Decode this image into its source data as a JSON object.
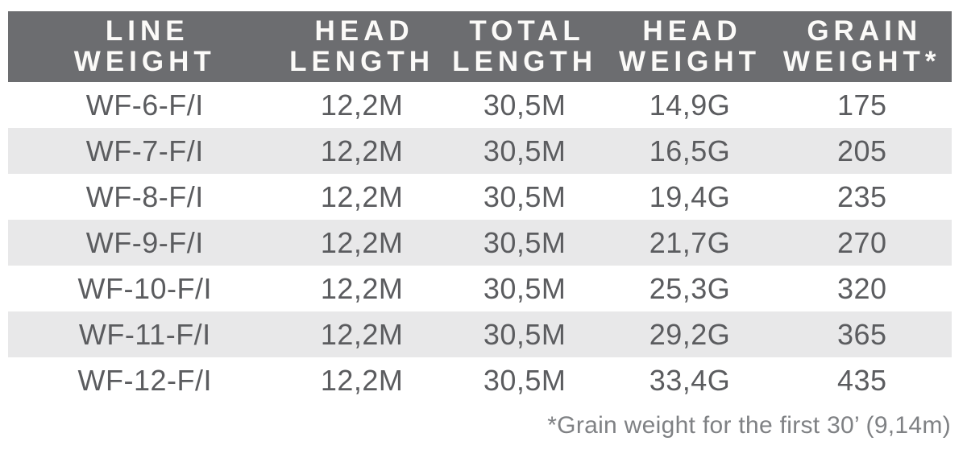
{
  "table": {
    "columns": [
      {
        "line1": "LINE",
        "line2": "WEIGHT"
      },
      {
        "line1": "HEAD",
        "line2": "LENGTH"
      },
      {
        "line1": "TOTAL",
        "line2": "LENGTH"
      },
      {
        "line1": "HEAD",
        "line2": "WEIGHT"
      },
      {
        "line1": "GRAIN",
        "line2": "WEIGHT*"
      }
    ],
    "rows": [
      [
        "WF-6-F/I",
        "12,2M",
        "30,5M",
        "14,9G",
        "175"
      ],
      [
        "WF-7-F/I",
        "12,2M",
        "30,5M",
        "16,5G",
        "205"
      ],
      [
        "WF-8-F/I",
        "12,2M",
        "30,5M",
        "19,4G",
        "235"
      ],
      [
        "WF-9-F/I",
        "12,2M",
        "30,5M",
        "21,7G",
        "270"
      ],
      [
        "WF-10-F/I",
        "12,2M",
        "30,5M",
        "25,3G",
        "320"
      ],
      [
        "WF-11-F/I",
        "12,2M",
        "30,5M",
        "29,2G",
        "365"
      ],
      [
        "WF-12-F/I",
        "12,2M",
        "30,5M",
        "33,4G",
        "435"
      ]
    ],
    "footnote": "*Grain weight for the first 30’ (9,14m)"
  },
  "colors": {
    "header_bg": "#6c6d70",
    "header_text": "#fbfaf8",
    "row_text": "#5b5c5f",
    "alt_row_bg": "#e8e8e9",
    "footnote_text": "#7f8184"
  },
  "chart_data": {
    "type": "table",
    "title": "",
    "columns": [
      "LINE WEIGHT",
      "HEAD LENGTH",
      "TOTAL LENGTH",
      "HEAD WEIGHT",
      "GRAIN WEIGHT*"
    ],
    "rows": [
      [
        "WF-6-F/I",
        "12,2M",
        "30,5M",
        "14,9G",
        "175"
      ],
      [
        "WF-7-F/I",
        "12,2M",
        "30,5M",
        "16,5G",
        "205"
      ],
      [
        "WF-8-F/I",
        "12,2M",
        "30,5M",
        "19,4G",
        "235"
      ],
      [
        "WF-9-F/I",
        "12,2M",
        "30,5M",
        "21,7G",
        "270"
      ],
      [
        "WF-10-F/I",
        "12,2M",
        "30,5M",
        "25,3G",
        "320"
      ],
      [
        "WF-11-F/I",
        "12,2M",
        "30,5M",
        "29,2G",
        "365"
      ],
      [
        "WF-12-F/I",
        "12,2M",
        "30,5M",
        "33,4G",
        "435"
      ]
    ],
    "footnote": "*Grain weight for the first 30’ (9,14m)",
    "layout_hints": {
      "alternating_row_shading": true,
      "header_style": "dark-band-white-text",
      "footnote_align": "right"
    }
  }
}
